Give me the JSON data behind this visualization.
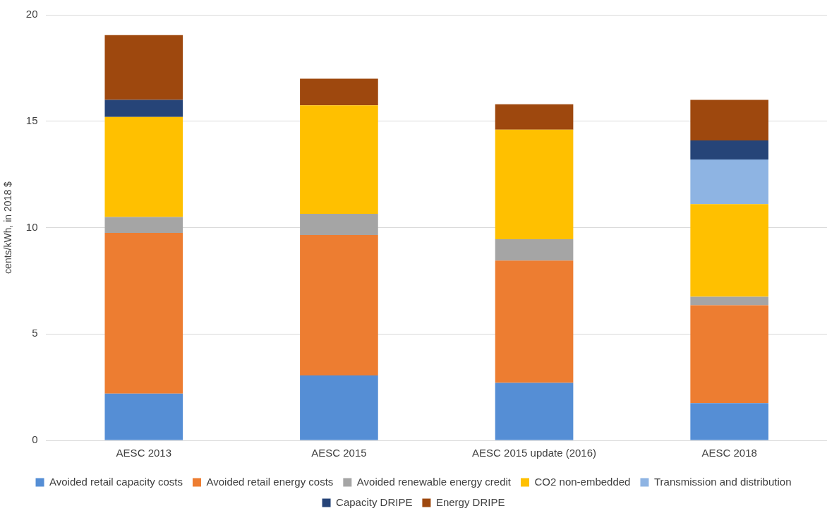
{
  "chart_data": {
    "type": "bar",
    "stacked": true,
    "ylabel": "cents/kWh, in 2018 $",
    "categories": [
      "AESC 2013",
      "AESC 2015",
      "AESC 2015 update (2016)",
      "AESC 2018"
    ],
    "series": [
      {
        "name": "Avoided retail capacity costs",
        "color": "#558ed5",
        "values": [
          2.2,
          3.05,
          2.7,
          1.75
        ]
      },
      {
        "name": "Avoided retail energy costs",
        "color": "#ed7d31",
        "values": [
          7.55,
          6.6,
          5.75,
          4.6
        ]
      },
      {
        "name": "Avoided renewable energy credit",
        "color": "#a5a5a5",
        "values": [
          0.75,
          1.0,
          1.0,
          0.4
        ]
      },
      {
        "name": "CO2 non-embedded",
        "color": "#ffc000",
        "values": [
          4.7,
          5.1,
          5.15,
          4.35
        ]
      },
      {
        "name": "Transmission and distribution",
        "color": "#8eb4e3",
        "values": [
          null,
          null,
          null,
          2.1
        ]
      },
      {
        "name": "Capacity DRIPE",
        "color": "#264478",
        "values": [
          0.8,
          null,
          null,
          0.9
        ]
      },
      {
        "name": "Energy DRIPE",
        "color": "#9e480e",
        "values": [
          3.05,
          1.25,
          1.2,
          1.9
        ]
      }
    ],
    "ylim": [
      0,
      20
    ],
    "yticks": [
      0,
      5,
      10,
      15,
      20
    ],
    "grid": "y",
    "legend": "bottom"
  }
}
